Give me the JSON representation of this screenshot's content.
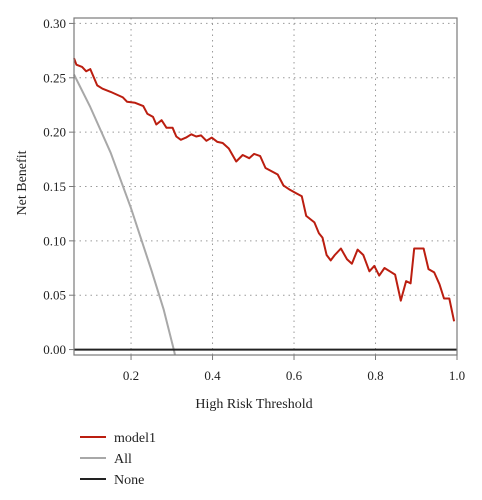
{
  "chart_data": {
    "type": "line",
    "xlabel": "High Risk Threshold",
    "ylabel": "Net Benefit",
    "xlim": [
      0.06,
      1.0
    ],
    "ylim": [
      -0.005,
      0.305
    ],
    "x_ticks": [
      "0.2",
      "0.4",
      "0.6",
      "0.8",
      "1.0"
    ],
    "y_ticks": [
      "0.00",
      "0.05",
      "0.10",
      "0.15",
      "0.20",
      "0.25",
      "0.30"
    ],
    "grid": "dotted",
    "legend_position": "bottom-left",
    "series": [
      {
        "name": "model1",
        "color": "#bb1e10",
        "points": [
          [
            0.06,
            0.268
          ],
          [
            0.066,
            0.262
          ],
          [
            0.08,
            0.26
          ],
          [
            0.09,
            0.256
          ],
          [
            0.1,
            0.258
          ],
          [
            0.117,
            0.243
          ],
          [
            0.13,
            0.24
          ],
          [
            0.15,
            0.237
          ],
          [
            0.18,
            0.232
          ],
          [
            0.19,
            0.228
          ],
          [
            0.21,
            0.227
          ],
          [
            0.23,
            0.224
          ],
          [
            0.24,
            0.217
          ],
          [
            0.254,
            0.214
          ],
          [
            0.262,
            0.207
          ],
          [
            0.275,
            0.211
          ],
          [
            0.287,
            0.204
          ],
          [
            0.302,
            0.204
          ],
          [
            0.311,
            0.196
          ],
          [
            0.322,
            0.193
          ],
          [
            0.335,
            0.195
          ],
          [
            0.348,
            0.198
          ],
          [
            0.36,
            0.196
          ],
          [
            0.372,
            0.197
          ],
          [
            0.385,
            0.192
          ],
          [
            0.398,
            0.195
          ],
          [
            0.412,
            0.191
          ],
          [
            0.425,
            0.19
          ],
          [
            0.44,
            0.185
          ],
          [
            0.458,
            0.173
          ],
          [
            0.474,
            0.179
          ],
          [
            0.49,
            0.176
          ],
          [
            0.502,
            0.18
          ],
          [
            0.517,
            0.178
          ],
          [
            0.53,
            0.167
          ],
          [
            0.545,
            0.164
          ],
          [
            0.56,
            0.161
          ],
          [
            0.574,
            0.151
          ],
          [
            0.59,
            0.147
          ],
          [
            0.604,
            0.144
          ],
          [
            0.619,
            0.141
          ],
          [
            0.63,
            0.123
          ],
          [
            0.65,
            0.117
          ],
          [
            0.661,
            0.107
          ],
          [
            0.67,
            0.103
          ],
          [
            0.68,
            0.087
          ],
          [
            0.69,
            0.082
          ],
          [
            0.7,
            0.087
          ],
          [
            0.715,
            0.093
          ],
          [
            0.73,
            0.083
          ],
          [
            0.742,
            0.079
          ],
          [
            0.756,
            0.092
          ],
          [
            0.77,
            0.087
          ],
          [
            0.785,
            0.072
          ],
          [
            0.797,
            0.077
          ],
          [
            0.809,
            0.068
          ],
          [
            0.822,
            0.075
          ],
          [
            0.835,
            0.072
          ],
          [
            0.848,
            0.069
          ],
          [
            0.862,
            0.045
          ],
          [
            0.875,
            0.063
          ],
          [
            0.886,
            0.061
          ],
          [
            0.895,
            0.093
          ],
          [
            0.905,
            0.093
          ],
          [
            0.918,
            0.093
          ],
          [
            0.93,
            0.074
          ],
          [
            0.944,
            0.071
          ],
          [
            0.957,
            0.06
          ],
          [
            0.968,
            0.047
          ],
          [
            0.981,
            0.047
          ],
          [
            0.993,
            0.026
          ]
        ]
      },
      {
        "name": "All",
        "color": "#a8a8a8",
        "points": [
          [
            0.06,
            0.253
          ],
          [
            0.1,
            0.223
          ],
          [
            0.15,
            0.181
          ],
          [
            0.2,
            0.13
          ],
          [
            0.25,
            0.073
          ],
          [
            0.28,
            0.037
          ],
          [
            0.305,
            0.0
          ],
          [
            0.308,
            -0.005
          ]
        ]
      },
      {
        "name": "None",
        "color": "#222222",
        "points": [
          [
            0.06,
            0.0
          ],
          [
            1.0,
            0.0
          ]
        ]
      }
    ]
  }
}
